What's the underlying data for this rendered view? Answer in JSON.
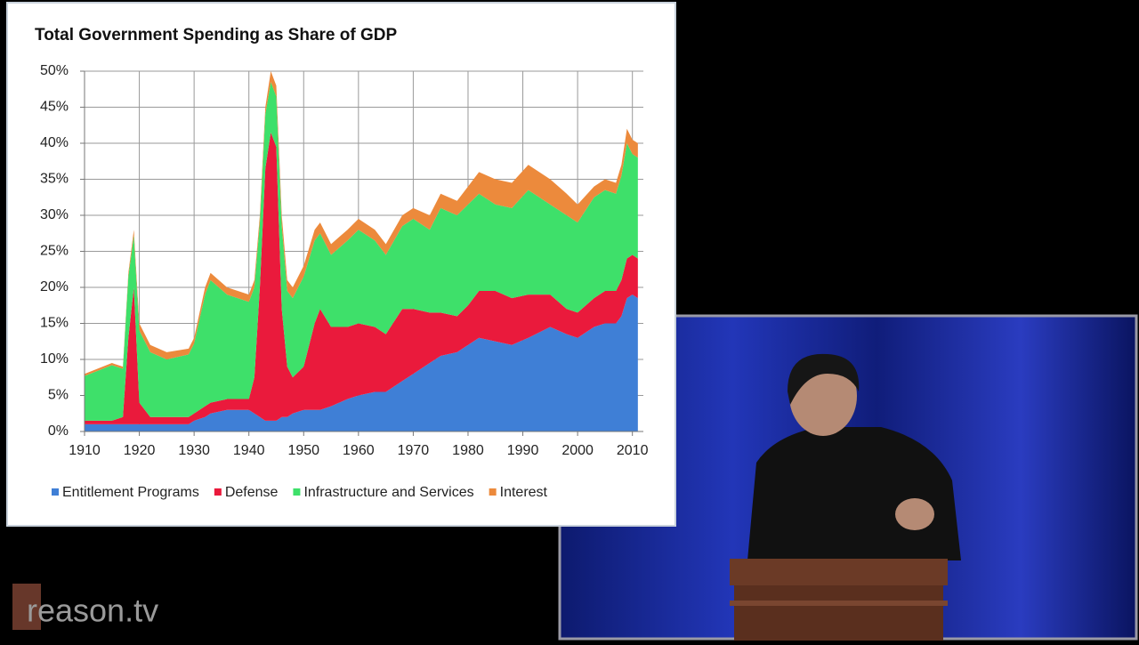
{
  "chart_data": {
    "type": "stacked_area",
    "title": "Total Government Spending as Share of GDP",
    "x": [
      1910,
      1915,
      1917,
      1918,
      1919,
      1920,
      1922,
      1925,
      1929,
      1930,
      1932,
      1933,
      1936,
      1940,
      1941,
      1942,
      1943,
      1944,
      1945,
      1946,
      1947,
      1948,
      1950,
      1952,
      1953,
      1955,
      1958,
      1960,
      1963,
      1965,
      1968,
      1970,
      1973,
      1975,
      1978,
      1980,
      1982,
      1985,
      1988,
      1991,
      1995,
      1998,
      2000,
      2003,
      2005,
      2007,
      2008,
      2009,
      2010,
      2011
    ],
    "series": [
      {
        "name": "Entitlement Programs",
        "color": "#3f7fd6",
        "values": [
          1,
          1,
          1,
          1,
          1,
          1,
          1,
          1,
          1,
          1.5,
          2,
          2.5,
          3,
          3,
          2.5,
          2,
          1.5,
          1.5,
          1.5,
          2,
          2,
          2.5,
          3,
          3,
          3,
          3.5,
          4.5,
          5,
          5.5,
          5.5,
          7,
          8,
          9.5,
          10.5,
          11,
          12,
          13,
          12.5,
          12,
          13,
          14.5,
          13.5,
          13,
          14.5,
          15,
          15,
          16,
          18.5,
          19,
          18.5
        ]
      },
      {
        "name": "Defense",
        "color": "#ea1a3c",
        "values": [
          0.5,
          0.5,
          1,
          12,
          19,
          3,
          1,
          1,
          1,
          1,
          1.5,
          1.5,
          1.5,
          1.5,
          5,
          18,
          35,
          40,
          38,
          15,
          7,
          5,
          6,
          12,
          14,
          11,
          10,
          10,
          9,
          8,
          10,
          9,
          7,
          6,
          5,
          5.5,
          6.5,
          7,
          6.5,
          6,
          4.5,
          3.5,
          3.5,
          4,
          4.5,
          4.5,
          5,
          5.5,
          5.5,
          5.5
        ]
      },
      {
        "name": "Infrastructure and Services",
        "color": "#3ee06a",
        "values": [
          6.2,
          7.7,
          6.7,
          8.5,
          7.2,
          10,
          9,
          8,
          8.7,
          9.7,
          15.5,
          17,
          14.5,
          13.5,
          12.5,
          9,
          7.5,
          7,
          7,
          11.5,
          10.5,
          11,
          12.5,
          11.5,
          10.5,
          10,
          12,
          13,
          12,
          11,
          11.5,
          12.5,
          11.5,
          14.5,
          14,
          14,
          13.5,
          12,
          12.5,
          14.5,
          12.5,
          13,
          12.5,
          14,
          14,
          13.5,
          14.5,
          16,
          14,
          14
        ]
      },
      {
        "name": "Interest",
        "color": "#ec8a3c",
        "values": [
          0.3,
          0.3,
          0.3,
          0.5,
          0.8,
          1,
          1,
          1,
          0.8,
          0.8,
          1,
          1,
          1,
          1,
          1,
          1,
          1,
          1.5,
          1.5,
          1.5,
          1.5,
          1.5,
          1.5,
          1.5,
          1.5,
          1.5,
          1.5,
          1.5,
          1.5,
          1.5,
          1.5,
          1.5,
          2,
          2,
          2,
          2.5,
          3,
          3.5,
          3.5,
          3.5,
          3.5,
          3,
          2.5,
          1.5,
          1.5,
          1.5,
          1.5,
          2,
          2,
          2
        ]
      }
    ],
    "xlim": [
      1910,
      2012
    ],
    "xticks": [
      1910,
      1920,
      1930,
      1940,
      1950,
      1960,
      1970,
      1980,
      1990,
      2000,
      2010
    ],
    "ylim": [
      0,
      50
    ],
    "yticks": [
      {
        "value": 0,
        "label": "0%"
      },
      {
        "value": 5,
        "label": "5%"
      },
      {
        "value": 10,
        "label": "10%"
      },
      {
        "value": 15,
        "label": "15%"
      },
      {
        "value": 20,
        "label": "20%"
      },
      {
        "value": 25,
        "label": "25%"
      },
      {
        "value": 30,
        "label": "30%"
      },
      {
        "value": 35,
        "label": "35%"
      },
      {
        "value": 40,
        "label": "40%"
      },
      {
        "value": 45,
        "label": "45%"
      },
      {
        "value": 50,
        "label": "50%"
      }
    ],
    "grid": true
  },
  "watermark": "reason.tv"
}
